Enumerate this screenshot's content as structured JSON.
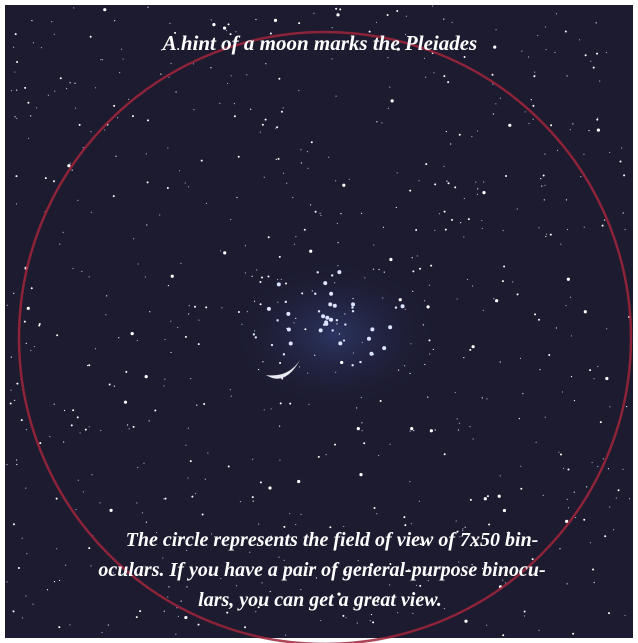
{
  "title": "A hint of a moon marks the Pleiades",
  "caption": {
    "lines": [
      "The circle represents the field of view of 7x50 bin-",
      "oculars. If you have a pair of general-purpose binocu-",
      "lars, you can get a great view."
    ]
  }
}
